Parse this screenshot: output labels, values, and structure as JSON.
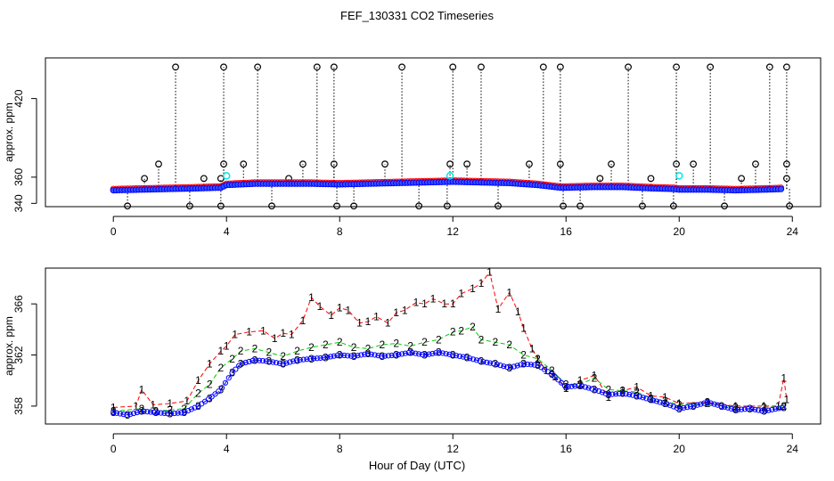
{
  "title": "FEF_130331  CO2 Timeseries",
  "xlabel": "Hour of Day (UTC)",
  "colors": {
    "series1": "#ff0000",
    "series2": "#00cc00",
    "series3": "#0000ff",
    "fill": "#3355ff",
    "cyan": "#00e5ee",
    "spike": "#000000"
  },
  "chart_data": [
    {
      "type": "scatter",
      "ylabel": "approx. ppm",
      "xlim": [
        -2.4,
        25.0
      ],
      "ylim": [
        337.5,
        451.0
      ],
      "xticks": [
        0,
        4,
        8,
        12,
        16,
        20,
        24
      ],
      "yticks": [
        340,
        360,
        420
      ],
      "yticklabels": [
        "340",
        "360",
        "420"
      ],
      "baseline": [
        [
          0,
          350
        ],
        [
          1,
          350.5
        ],
        [
          2,
          351
        ],
        [
          3,
          351.5
        ],
        [
          3.8,
          352
        ],
        [
          4,
          354
        ],
        [
          5,
          355
        ],
        [
          6,
          355
        ],
        [
          7,
          355
        ],
        [
          8,
          354.5
        ],
        [
          9,
          355
        ],
        [
          10,
          355.5
        ],
        [
          11,
          356
        ],
        [
          12,
          356.5
        ],
        [
          13,
          356
        ],
        [
          14,
          355.5
        ],
        [
          15,
          354
        ],
        [
          15.8,
          352
        ],
        [
          16,
          352
        ],
        [
          17,
          352.5
        ],
        [
          18,
          352.5
        ],
        [
          19,
          351.5
        ],
        [
          19.8,
          351
        ],
        [
          20,
          350.5
        ],
        [
          21,
          350.5
        ],
        [
          22,
          350
        ],
        [
          23,
          350.5
        ],
        [
          23.7,
          351
        ]
      ],
      "upper_spikes": [
        [
          2.2,
          444
        ],
        [
          3.9,
          444
        ],
        [
          5.1,
          444
        ],
        [
          7.2,
          444
        ],
        [
          7.8,
          444
        ],
        [
          10.2,
          444
        ],
        [
          12.0,
          444
        ],
        [
          13.0,
          444
        ],
        [
          15.2,
          444
        ],
        [
          15.8,
          444
        ],
        [
          18.2,
          444
        ],
        [
          19.9,
          444
        ],
        [
          21.1,
          444
        ],
        [
          23.2,
          444
        ],
        [
          23.8,
          444
        ],
        [
          1.6,
          370
        ],
        [
          3.9,
          370
        ],
        [
          4.6,
          370
        ],
        [
          6.7,
          370
        ],
        [
          7.8,
          370
        ],
        [
          9.6,
          370
        ],
        [
          11.9,
          370
        ],
        [
          12.5,
          370
        ],
        [
          14.7,
          370
        ],
        [
          15.8,
          370
        ],
        [
          17.6,
          370
        ],
        [
          19.9,
          370
        ],
        [
          20.5,
          370
        ],
        [
          22.7,
          370
        ],
        [
          23.8,
          370
        ],
        [
          1.1,
          359
        ],
        [
          3.2,
          359
        ],
        [
          3.8,
          359
        ],
        [
          6.2,
          359
        ],
        [
          17.2,
          359
        ],
        [
          19.0,
          359
        ],
        [
          22.2,
          359
        ],
        [
          23.8,
          359
        ]
      ],
      "lower_spikes": [
        [
          0.5,
          338
        ],
        [
          2.7,
          338
        ],
        [
          3.8,
          338
        ],
        [
          5.6,
          338
        ],
        [
          7.9,
          338
        ],
        [
          8.5,
          338
        ],
        [
          10.8,
          338
        ],
        [
          11.8,
          338
        ],
        [
          13.6,
          338
        ],
        [
          15.9,
          338
        ],
        [
          16.5,
          338
        ],
        [
          18.7,
          338
        ],
        [
          19.8,
          338
        ],
        [
          21.6,
          338
        ],
        [
          23.9,
          338
        ]
      ],
      "cyan_points": [
        [
          4.0,
          361
        ],
        [
          11.9,
          361
        ],
        [
          20.0,
          361
        ]
      ]
    },
    {
      "type": "line",
      "ylabel": "approx. ppm",
      "xlim": [
        -2.4,
        25.0
      ],
      "ylim": [
        356.6,
        368.8
      ],
      "xticks": [
        0,
        4,
        8,
        12,
        16,
        20,
        24
      ],
      "yticks": [
        358,
        362,
        366
      ],
      "yticklabels": [
        "358",
        "362",
        "366"
      ],
      "series": [
        {
          "name": "1",
          "points": [
            [
              0,
              357.9
            ],
            [
              0.8,
              358.0
            ],
            [
              1.0,
              359.3
            ],
            [
              1.4,
              358.1
            ],
            [
              2.0,
              358.2
            ],
            [
              2.6,
              358.4
            ],
            [
              3.0,
              360.0
            ],
            [
              3.4,
              361.3
            ],
            [
              3.8,
              362.3
            ],
            [
              4.0,
              362.7
            ],
            [
              4.3,
              363.6
            ],
            [
              4.8,
              363.8
            ],
            [
              5.3,
              363.9
            ],
            [
              5.7,
              363.3
            ],
            [
              6.0,
              363.7
            ],
            [
              6.3,
              363.6
            ],
            [
              6.7,
              364.7
            ],
            [
              7.0,
              366.5
            ],
            [
              7.3,
              365.8
            ],
            [
              7.7,
              365.1
            ],
            [
              8.0,
              365.7
            ],
            [
              8.3,
              365.5
            ],
            [
              8.7,
              364.5
            ],
            [
              9.0,
              364.6
            ],
            [
              9.3,
              365.0
            ],
            [
              9.7,
              364.5
            ],
            [
              10.0,
              365.3
            ],
            [
              10.3,
              365.5
            ],
            [
              10.7,
              366.1
            ],
            [
              11.0,
              366.0
            ],
            [
              11.3,
              366.4
            ],
            [
              11.7,
              366.0
            ],
            [
              12.0,
              366.0
            ],
            [
              12.3,
              366.8
            ],
            [
              12.7,
              367.2
            ],
            [
              13.0,
              367.6
            ],
            [
              13.3,
              368.5
            ],
            [
              13.6,
              365.6
            ],
            [
              14.0,
              366.9
            ],
            [
              14.3,
              365.4
            ],
            [
              14.5,
              364.1
            ],
            [
              14.8,
              362.5
            ],
            [
              15.0,
              361.7
            ],
            [
              15.3,
              360.8
            ],
            [
              15.6,
              360.3
            ],
            [
              16.0,
              359.4
            ],
            [
              16.5,
              360.0
            ],
            [
              17.0,
              360.4
            ],
            [
              17.5,
              358.7
            ],
            [
              18.0,
              359.2
            ],
            [
              18.5,
              359.5
            ],
            [
              19.0,
              358.8
            ],
            [
              19.5,
              358.7
            ],
            [
              20.0,
              358.2
            ],
            [
              21.0,
              358.3
            ],
            [
              22.0,
              358.0
            ],
            [
              23.0,
              358.0
            ],
            [
              23.5,
              358.0
            ],
            [
              23.7,
              360.2
            ],
            [
              23.8,
              358.5
            ]
          ]
        },
        {
          "name": "2",
          "points": [
            [
              0,
              357.6
            ],
            [
              1.0,
              357.8
            ],
            [
              1.5,
              357.6
            ],
            [
              2.0,
              357.7
            ],
            [
              2.5,
              357.8
            ],
            [
              3.0,
              359.0
            ],
            [
              3.4,
              359.7
            ],
            [
              3.8,
              361.0
            ],
            [
              4.2,
              361.7
            ],
            [
              4.5,
              362.3
            ],
            [
              5.0,
              362.5
            ],
            [
              5.5,
              362.2
            ],
            [
              6.0,
              361.9
            ],
            [
              6.5,
              362.3
            ],
            [
              7.0,
              362.6
            ],
            [
              7.5,
              362.8
            ],
            [
              8.0,
              363.0
            ],
            [
              8.5,
              362.6
            ],
            [
              9.0,
              362.5
            ],
            [
              9.5,
              362.8
            ],
            [
              10.0,
              362.9
            ],
            [
              10.5,
              362.7
            ],
            [
              11.0,
              363.0
            ],
            [
              11.5,
              363.2
            ],
            [
              12.0,
              363.8
            ],
            [
              12.3,
              363.9
            ],
            [
              12.7,
              364.2
            ],
            [
              13.0,
              363.2
            ],
            [
              13.5,
              363.0
            ],
            [
              14.0,
              362.8
            ],
            [
              14.5,
              362.0
            ],
            [
              15.0,
              361.7
            ],
            [
              15.5,
              360.8
            ],
            [
              16.0,
              359.7
            ],
            [
              16.5,
              359.7
            ],
            [
              17.0,
              360.2
            ],
            [
              17.5,
              359.3
            ],
            [
              18.0,
              359.2
            ],
            [
              18.5,
              359.1
            ],
            [
              19.0,
              358.6
            ],
            [
              19.5,
              358.4
            ],
            [
              20.0,
              358.1
            ],
            [
              21.0,
              358.2
            ],
            [
              22.0,
              357.9
            ],
            [
              23.0,
              357.9
            ],
            [
              23.7,
              358.0
            ]
          ]
        },
        {
          "name": "3",
          "points": [
            [
              0,
              357.5
            ],
            [
              0.5,
              357.3
            ],
            [
              1.0,
              357.6
            ],
            [
              1.5,
              357.5
            ],
            [
              2.0,
              357.4
            ],
            [
              2.5,
              357.5
            ],
            [
              3.0,
              358.0
            ],
            [
              3.4,
              358.6
            ],
            [
              3.8,
              359.3
            ],
            [
              4.2,
              360.6
            ],
            [
              4.5,
              361.3
            ],
            [
              5.0,
              361.6
            ],
            [
              5.5,
              361.5
            ],
            [
              6.0,
              361.3
            ],
            [
              6.5,
              361.6
            ],
            [
              7.0,
              361.7
            ],
            [
              7.5,
              361.8
            ],
            [
              8.0,
              362.0
            ],
            [
              8.5,
              361.9
            ],
            [
              9.0,
              362.1
            ],
            [
              9.5,
              361.9
            ],
            [
              10.0,
              362.0
            ],
            [
              10.5,
              362.2
            ],
            [
              11.0,
              362.0
            ],
            [
              11.5,
              362.2
            ],
            [
              12.0,
              362.0
            ],
            [
              12.5,
              361.8
            ],
            [
              13.0,
              361.5
            ],
            [
              13.5,
              361.3
            ],
            [
              14.0,
              361.0
            ],
            [
              14.5,
              361.3
            ],
            [
              15.0,
              361.2
            ],
            [
              15.5,
              360.5
            ],
            [
              16.0,
              359.5
            ],
            [
              16.5,
              359.6
            ],
            [
              17.0,
              359.3
            ],
            [
              17.5,
              358.9
            ],
            [
              18.0,
              359.0
            ],
            [
              18.5,
              358.8
            ],
            [
              19.0,
              358.5
            ],
            [
              19.5,
              358.2
            ],
            [
              20.0,
              357.8
            ],
            [
              20.5,
              358.0
            ],
            [
              21.0,
              358.3
            ],
            [
              21.5,
              358.0
            ],
            [
              22.0,
              357.7
            ],
            [
              22.5,
              357.8
            ],
            [
              23.0,
              357.6
            ],
            [
              23.7,
              357.9
            ]
          ]
        }
      ]
    }
  ]
}
